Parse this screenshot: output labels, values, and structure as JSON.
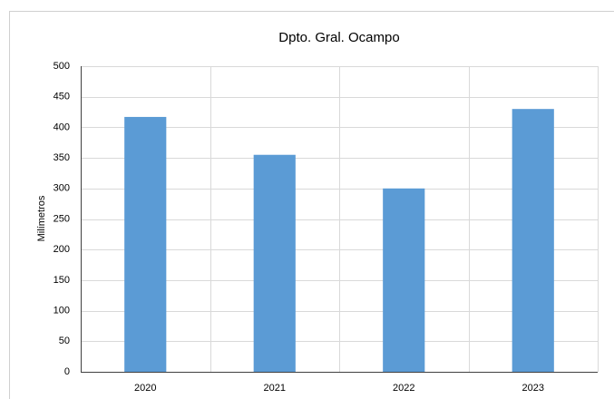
{
  "chart_data": {
    "type": "bar",
    "title": "Dpto. Gral. Ocampo",
    "y_label": "Milímetros",
    "categories": [
      "2020",
      "2021",
      "2022",
      "2023"
    ],
    "values": [
      417,
      355,
      300,
      430
    ],
    "color": "#5b9bd5",
    "ylim": [
      0,
      500
    ],
    "yticks": [
      0,
      50,
      100,
      150,
      200,
      250,
      300,
      350,
      400,
      450,
      500
    ],
    "grid": true
  }
}
